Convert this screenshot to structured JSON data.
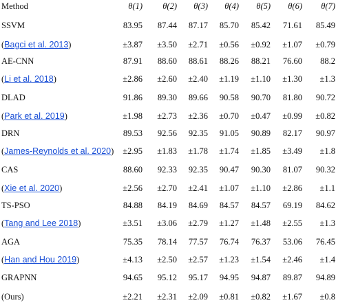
{
  "header": {
    "method": "Method",
    "cols": [
      "θ(1)",
      "θ(2)",
      "θ(3)",
      "θ(4)",
      "θ(5)",
      "θ(6)",
      "θ(7)"
    ]
  },
  "rows": [
    {
      "method": "SSVM",
      "cite": "",
      "vals": [
        "83.95",
        "87.44",
        "87.17",
        "85.70",
        "85.42",
        "71.61",
        "85.49"
      ]
    },
    {
      "method": "",
      "cite": "Bagci et al. 2013",
      "vals": [
        "±3.87",
        "±3.50",
        "±2.71",
        "±0.56",
        "±0.92",
        "±1.07",
        "±0.79"
      ]
    },
    {
      "method": "AE-CNN",
      "cite": "",
      "vals": [
        "87.91",
        "88.60",
        "88.61",
        "88.26",
        "88.21",
        "76.60",
        "88.2"
      ]
    },
    {
      "method": "",
      "cite": "Li et al. 2018",
      "vals": [
        "±2.86",
        "±2.60",
        "±2.40",
        "±1.19",
        "±1.10",
        "±1.30",
        "±1.3"
      ]
    },
    {
      "method": "DLAD",
      "cite": "",
      "vals": [
        "91.86",
        "89.30",
        "89.66",
        "90.58",
        "90.70",
        "81.80",
        "90.72"
      ]
    },
    {
      "method": "",
      "cite": "Park et al. 2019",
      "vals": [
        "±1.98",
        "±2.73",
        "±2.36",
        "±0.70",
        "±0.47",
        "±0.99",
        "±0.82"
      ]
    },
    {
      "method": "DRN",
      "cite": "",
      "vals": [
        "89.53",
        "92.56",
        "92.35",
        "91.05",
        "90.89",
        "82.17",
        "90.97"
      ]
    },
    {
      "method": "",
      "cite": "James-Reynolds et al. 2020",
      "vals": [
        "±2.95",
        "±1.83",
        "±1.78",
        "±1.74",
        "±1.85",
        "±3.49",
        "±1.8"
      ]
    },
    {
      "method": "CAS",
      "cite": "",
      "vals": [
        "88.60",
        "92.33",
        "92.35",
        "90.47",
        "90.30",
        "81.07",
        "90.32"
      ]
    },
    {
      "method": "",
      "cite": "Xie et al. 2020",
      "vals": [
        "±2.56",
        "±2.70",
        "±2.41",
        "±1.07",
        "±1.10",
        "±2.86",
        "±1.1"
      ]
    },
    {
      "method": "TS-PSO",
      "cite": "",
      "vals": [
        "84.88",
        "84.19",
        "84.69",
        "84.57",
        "84.57",
        "69.19",
        "84.62"
      ]
    },
    {
      "method": "",
      "cite": "Tang and Lee 2018",
      "vals": [
        "±3.51",
        "±3.06",
        "±2.79",
        "±1.27",
        "±1.48",
        "±2.55",
        "±1.3"
      ]
    },
    {
      "method": "AGA",
      "cite": "",
      "vals": [
        "75.35",
        "78.14",
        "77.57",
        "76.74",
        "76.37",
        "53.06",
        "76.45"
      ]
    },
    {
      "method": "",
      "cite": "Han and Hou 2019",
      "vals": [
        "±4.13",
        "±2.50",
        "±2.57",
        "±1.23",
        "±1.54",
        "±2.46",
        "±1.4"
      ]
    },
    {
      "method": "GRAPNN",
      "cite": "",
      "vals": [
        "94.65",
        "95.12",
        "95.17",
        "94.95",
        "94.87",
        "89.87",
        "94.89"
      ]
    },
    {
      "method": "(Ours)",
      "cite": "",
      "vals": [
        "±2.21",
        "±2.31",
        "±2.09",
        "±0.81",
        "±0.82",
        "±1.67",
        "±0.8"
      ]
    }
  ]
}
